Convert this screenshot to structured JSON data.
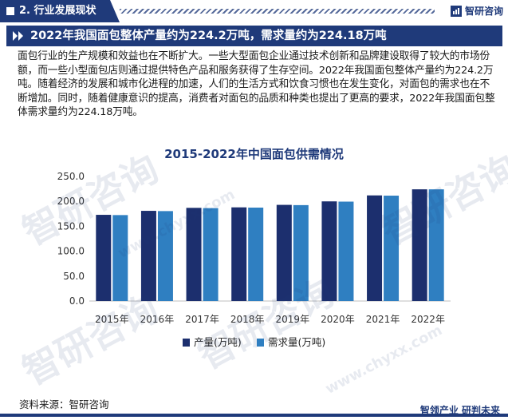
{
  "header": {
    "section_label": "2. 行业发展现状",
    "brand_name": "智研咨询"
  },
  "headline": "2022年我国面包整体产量约为224.2万吨，需求量约为224.18万吨",
  "paragraph": "面包行业的生产规模和效益也在不断扩大。一些大型面包企业通过技术创新和品牌建设取得了较大的市场份额，而一些小型面包店则通过提供特色产品和服务获得了生存空间。2022年我国面包整体产量约为224.2万吨。随着经济的发展和城市化进程的加速，人们的生活方式和饮食习惯也在发生变化，对面包的需求也在不断增加。同时，随着健康意识的提高，消费者对面包的品质和种类也提出了更高的要求，2022年我国面包整体需求量约为224.18万吨。",
  "watermark": {
    "text": "智研咨询",
    "url": "www.chyxx.com"
  },
  "colors": {
    "primary": "#1f3a7a",
    "series_1": "#1c2f6e",
    "series_2": "#2f7fc1",
    "axis": "#bfbfbf"
  },
  "chart_data": {
    "type": "bar",
    "title": "2015-2022年中国面包供需情况",
    "categories": [
      "2015年",
      "2016年",
      "2017年",
      "2018年",
      "2019年",
      "2020年",
      "2021年",
      "2022年"
    ],
    "series": [
      {
        "name": "产量(万吨)",
        "values": [
          173,
          181,
          187,
          188,
          193,
          200,
          212,
          224.2
        ]
      },
      {
        "name": "需求量(万吨)",
        "values": [
          172.5,
          180.5,
          186.5,
          187.5,
          192.5,
          199.5,
          211.5,
          224.18
        ]
      }
    ],
    "yticks": [
      "0.0",
      "50.0",
      "100.0",
      "150.0",
      "200.0",
      "250.0"
    ],
    "ylim": [
      0,
      250
    ],
    "grid": false,
    "legend_position": "bottom"
  },
  "footer": {
    "source": "资料来源：智研咨询",
    "brand_line": "智领产业  研判未来"
  }
}
